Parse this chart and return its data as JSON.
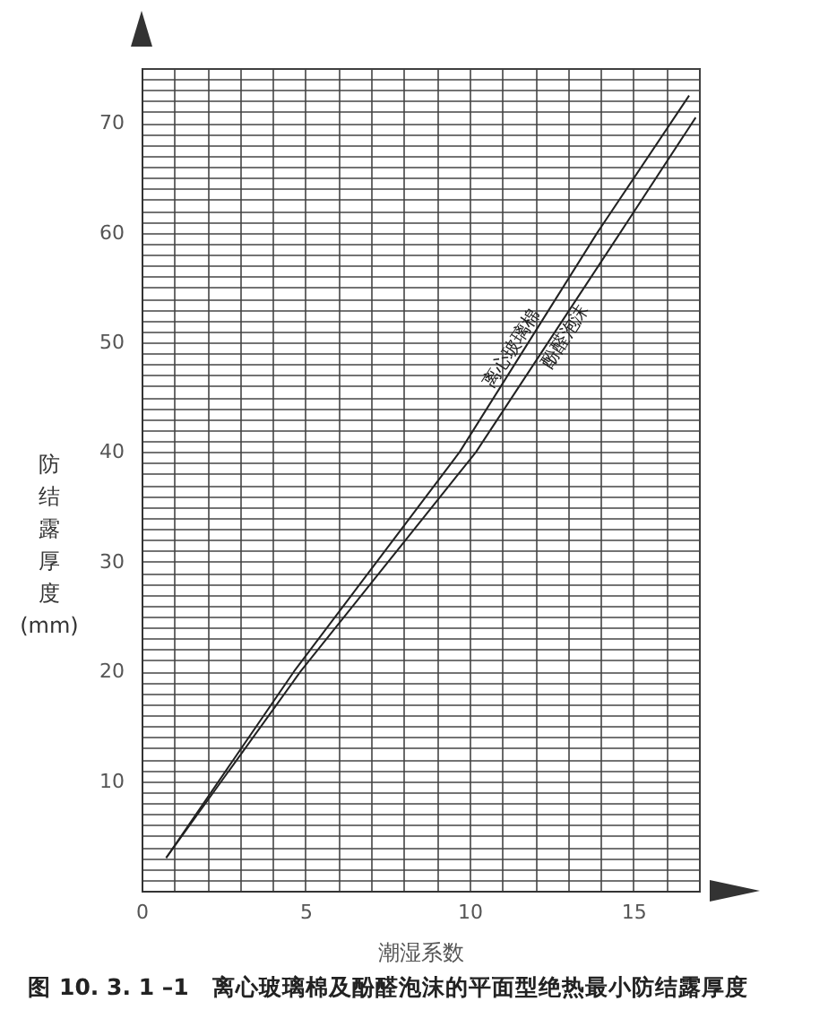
{
  "chart_data": {
    "type": "line",
    "title": "图 10. 3. 1 –1　离心玻璃棉及酚醛泡沫的平面型绝热最小防结露厚度",
    "xlabel": "潮湿系数",
    "ylabel": "防结露厚度(mm)",
    "xlim": [
      0,
      17
    ],
    "ylim": [
      0,
      75
    ],
    "xticks": [
      0,
      {
        "value": 1,
        "label": null
      },
      {
        "value": 2,
        "label": null
      },
      {
        "value": 3,
        "label": null
      },
      {
        "value": 4,
        "label": null
      },
      5,
      {
        "value": 6,
        "label": null
      },
      {
        "value": 7,
        "label": null
      },
      {
        "value": 8,
        "label": null
      },
      {
        "value": 9,
        "label": null
      },
      10,
      {
        "value": 11,
        "label": null
      },
      {
        "value": 12,
        "label": null
      },
      {
        "value": 13,
        "label": null
      },
      {
        "value": 14,
        "label": null
      },
      15,
      {
        "value": 16,
        "label": null
      },
      {
        "value": 17,
        "label": null
      }
    ],
    "yticks": [
      {
        "value": 0,
        "label": null
      },
      {
        "value": 1,
        "label": null
      },
      {
        "value": 2,
        "label": null
      },
      {
        "value": 3,
        "label": null
      },
      {
        "value": 4,
        "label": null
      },
      {
        "value": 5,
        "label": null
      },
      {
        "value": 6,
        "label": null
      },
      {
        "value": 7,
        "label": null
      },
      {
        "value": 8,
        "label": null
      },
      {
        "value": 9,
        "label": null
      },
      10,
      {
        "value": 11,
        "label": null
      },
      {
        "value": 12,
        "label": null
      },
      {
        "value": 13,
        "label": null
      },
      {
        "value": 14,
        "label": null
      },
      {
        "value": 15,
        "label": null
      },
      {
        "value": 16,
        "label": null
      },
      {
        "value": 17,
        "label": null
      },
      {
        "value": 18,
        "label": null
      },
      {
        "value": 19,
        "label": null
      },
      20,
      {
        "value": 21,
        "label": null
      },
      {
        "value": 22,
        "label": null
      },
      {
        "value": 23,
        "label": null
      },
      {
        "value": 24,
        "label": null
      },
      {
        "value": 25,
        "label": null
      },
      {
        "value": 26,
        "label": null
      },
      {
        "value": 27,
        "label": null
      },
      {
        "value": 28,
        "label": null
      },
      {
        "value": 29,
        "label": null
      },
      30,
      {
        "value": 31,
        "label": null
      },
      {
        "value": 32,
        "label": null
      },
      {
        "value": 33,
        "label": null
      },
      {
        "value": 34,
        "label": null
      },
      {
        "value": 35,
        "label": null
      },
      {
        "value": 36,
        "label": null
      },
      {
        "value": 37,
        "label": null
      },
      {
        "value": 38,
        "label": null
      },
      {
        "value": 39,
        "label": null
      },
      40,
      {
        "value": 41,
        "label": null
      },
      {
        "value": 42,
        "label": null
      },
      {
        "value": 43,
        "label": null
      },
      {
        "value": 44,
        "label": null
      },
      {
        "value": 45,
        "label": null
      },
      {
        "value": 46,
        "label": null
      },
      {
        "value": 47,
        "label": null
      },
      {
        "value": 48,
        "label": null
      },
      {
        "value": 49,
        "label": null
      },
      50,
      {
        "value": 51,
        "label": null
      },
      {
        "value": 52,
        "label": null
      },
      {
        "value": 53,
        "label": null
      },
      {
        "value": 54,
        "label": null
      },
      {
        "value": 55,
        "label": null
      },
      {
        "value": 56,
        "label": null
      },
      {
        "value": 57,
        "label": null
      },
      {
        "value": 58,
        "label": null
      },
      {
        "value": 59,
        "label": null
      },
      60,
      {
        "value": 61,
        "label": null
      },
      {
        "value": 62,
        "label": null
      },
      {
        "value": 63,
        "label": null
      },
      {
        "value": 64,
        "label": null
      },
      {
        "value": 65,
        "label": null
      },
      {
        "value": 66,
        "label": null
      },
      {
        "value": 67,
        "label": null
      },
      {
        "value": 68,
        "label": null
      },
      {
        "value": 69,
        "label": null
      },
      70,
      {
        "value": 71,
        "label": null
      },
      {
        "value": 72,
        "label": null
      },
      {
        "value": 73,
        "label": null
      },
      {
        "value": 74,
        "label": null
      },
      {
        "value": 75,
        "label": null
      }
    ],
    "grid": true,
    "marker": "none",
    "line_style": "solid",
    "legend": false,
    "series": [
      {
        "name": "离心玻璃棉",
        "color": "#222222",
        "x": [
          0.75,
          4.65,
          9.7,
          13.9,
          16.7
        ],
        "values": [
          3,
          20,
          40,
          60,
          72.5
        ]
      },
      {
        "name": "酚醛泡沫",
        "color": "#222222",
        "x": [
          0.75,
          4.85,
          10.2,
          14.6,
          16.9
        ],
        "values": [
          3,
          20,
          40,
          60,
          70.5
        ]
      }
    ]
  }
}
